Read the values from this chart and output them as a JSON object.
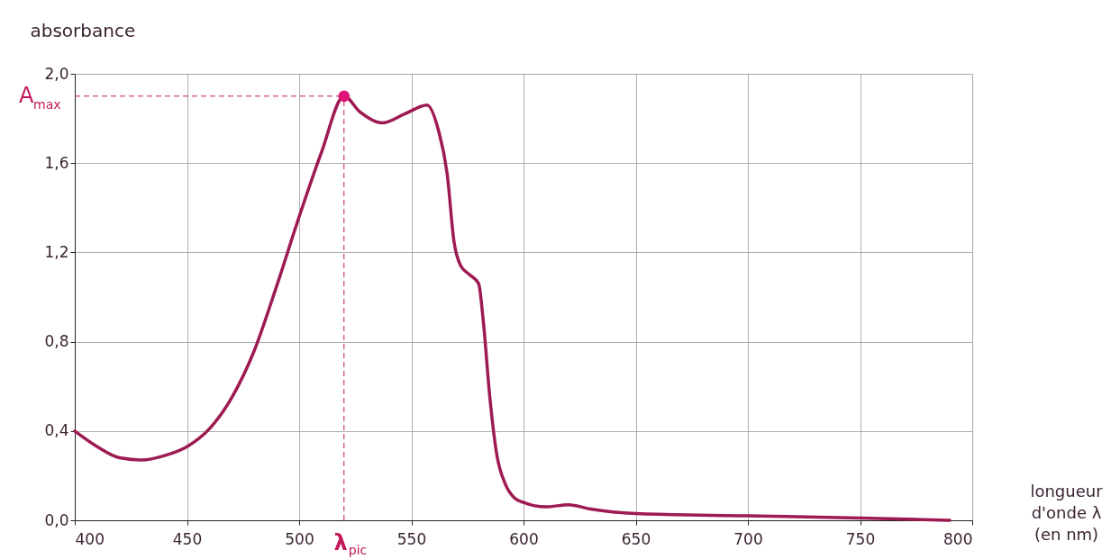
{
  "chart_data": {
    "type": "line",
    "xlabel": "longueur d'onde λ (en nm)",
    "ylabel": "absorbance",
    "xlim": [
      400,
      800
    ],
    "ylim": [
      0,
      2.0
    ],
    "xticks": [
      400,
      450,
      500,
      550,
      600,
      650,
      700,
      750,
      800
    ],
    "yticks": [
      {
        "value": 0,
        "label": "0,0"
      },
      {
        "value": 0.4,
        "label": "0,4"
      },
      {
        "value": 0.8,
        "label": "0,8"
      },
      {
        "value": 1.2,
        "label": "1,2"
      },
      {
        "value": 1.6,
        "label": "1,6"
      },
      {
        "value": 2.0,
        "label": "2,0"
      }
    ],
    "grid": true,
    "series": [
      {
        "color": "#9e1a52",
        "x": [
          400,
          410,
          420,
          430,
          440,
          450,
          460,
          470,
          480,
          490,
          500,
          510,
          520,
          527,
          537,
          547,
          557,
          562,
          566,
          569,
          572,
          576,
          580,
          582,
          585,
          588,
          592,
          596,
          600,
          610,
          620,
          630,
          650,
          700,
          750,
          790
        ],
        "values": [
          0.4,
          0.33,
          0.28,
          0.27,
          0.29,
          0.33,
          0.41,
          0.55,
          0.76,
          1.05,
          1.36,
          1.65,
          1.9,
          1.83,
          1.78,
          1.82,
          1.86,
          1.75,
          1.55,
          1.25,
          1.14,
          1.1,
          1.06,
          0.9,
          0.55,
          0.3,
          0.16,
          0.1,
          0.08,
          0.06,
          0.07,
          0.05,
          0.03,
          0.02,
          0.01,
          0.0
        ]
      },
      {
        "type": "scatter",
        "color": "#e0157a",
        "x": [
          520
        ],
        "values": [
          1.9
        ],
        "marker": "circle"
      }
    ],
    "ref_lines": [
      {
        "axis": "y",
        "value": 1.9,
        "label": "A$_{max}$",
        "color": "#c2185b",
        "line_style": "dashed"
      },
      {
        "axis": "x",
        "value": 520,
        "label": "λ$_{pic}$",
        "color": "#c2185b",
        "line_style": "dashed"
      }
    ]
  }
}
